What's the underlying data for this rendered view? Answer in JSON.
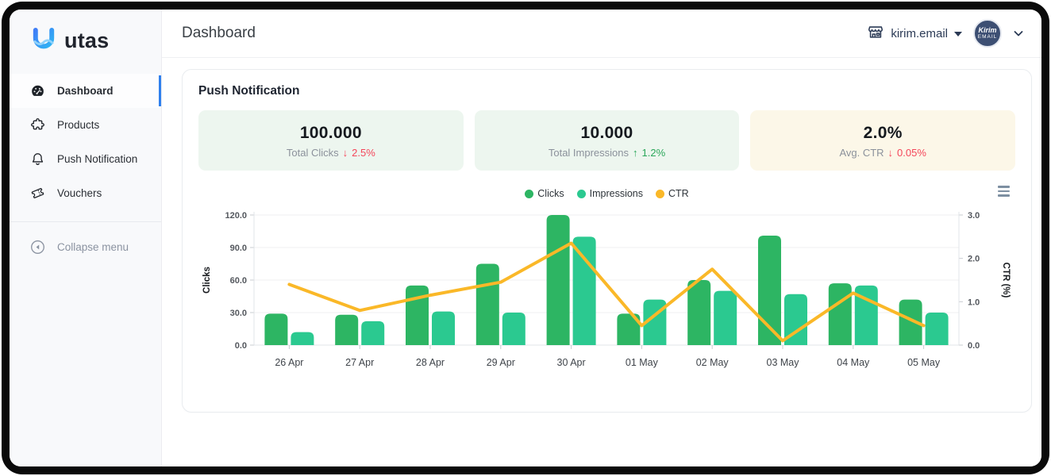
{
  "brand": {
    "name": "utas",
    "logo_icon": "utas-u-logo-icon"
  },
  "sidebar": {
    "items": [
      {
        "label": "Dashboard",
        "icon": "dashboard-gauge-icon",
        "active": true
      },
      {
        "label": "Products",
        "icon": "puzzle-icon",
        "active": false
      },
      {
        "label": "Push Notification",
        "icon": "bell-icon",
        "active": false
      },
      {
        "label": "Vouchers",
        "icon": "ticket-icon",
        "active": false
      }
    ],
    "collapse_label": "Collapse menu",
    "collapse_icon": "collapse-circle-left-icon",
    "active_indicator_color": "#2f80ed"
  },
  "header": {
    "title": "Dashboard",
    "store": {
      "name": "kirim.email",
      "icon": "storefront-icon"
    },
    "avatar": {
      "line1": "Kirim",
      "line2": "EMAIL",
      "background": "#3d4f73"
    }
  },
  "panel": {
    "title": "Push Notification",
    "stats": [
      {
        "value": "100.000",
        "label": "Total Clicks",
        "delta": "2.5%",
        "direction": "down",
        "background": "#edf6ef"
      },
      {
        "value": "10.000",
        "label": "Total Impressions",
        "delta": "1.2%",
        "direction": "up",
        "background": "#edf6ef"
      },
      {
        "value": "2.0%",
        "label": "Avg. CTR",
        "delta": "0.05%",
        "direction": "down",
        "background": "#fcf7e8"
      }
    ],
    "delta_colors": {
      "up": "#2aa75a",
      "down": "#f4465a"
    },
    "arrows": {
      "up": "↑",
      "down": "↓"
    }
  },
  "chart_data": {
    "type": "combo (bar + line, dual axis)",
    "categories": [
      "26 Apr",
      "27 Apr",
      "28 Apr",
      "29 Apr",
      "30 Apr",
      "01 May",
      "02 May",
      "03 May",
      "04 May",
      "05 May"
    ],
    "series": [
      {
        "name": "Clicks",
        "type": "bar",
        "axis": "left",
        "color": "#2db563",
        "values": [
          29,
          28,
          55,
          75,
          120,
          29,
          60,
          101,
          57,
          42
        ]
      },
      {
        "name": "Impressions",
        "type": "bar",
        "axis": "left",
        "color": "#2bc990",
        "values": [
          12,
          22,
          31,
          30,
          100,
          42,
          50,
          47,
          55,
          30
        ]
      },
      {
        "name": "CTR",
        "type": "line",
        "axis": "right",
        "color": "#fab828",
        "values": [
          1.4,
          0.8,
          1.15,
          1.45,
          2.35,
          0.45,
          1.75,
          0.1,
          1.2,
          0.45
        ]
      }
    ],
    "left_axis": {
      "title": "Clicks",
      "min": 0,
      "max": 120,
      "ticks": [
        0,
        30,
        60,
        90,
        120
      ],
      "tick_decimals": 1
    },
    "right_axis": {
      "title": "CTR (%)",
      "min": 0,
      "max": 3,
      "ticks": [
        0,
        1,
        2,
        3
      ],
      "tick_decimals": 1
    },
    "grid": true,
    "legend_position": "top-center"
  }
}
